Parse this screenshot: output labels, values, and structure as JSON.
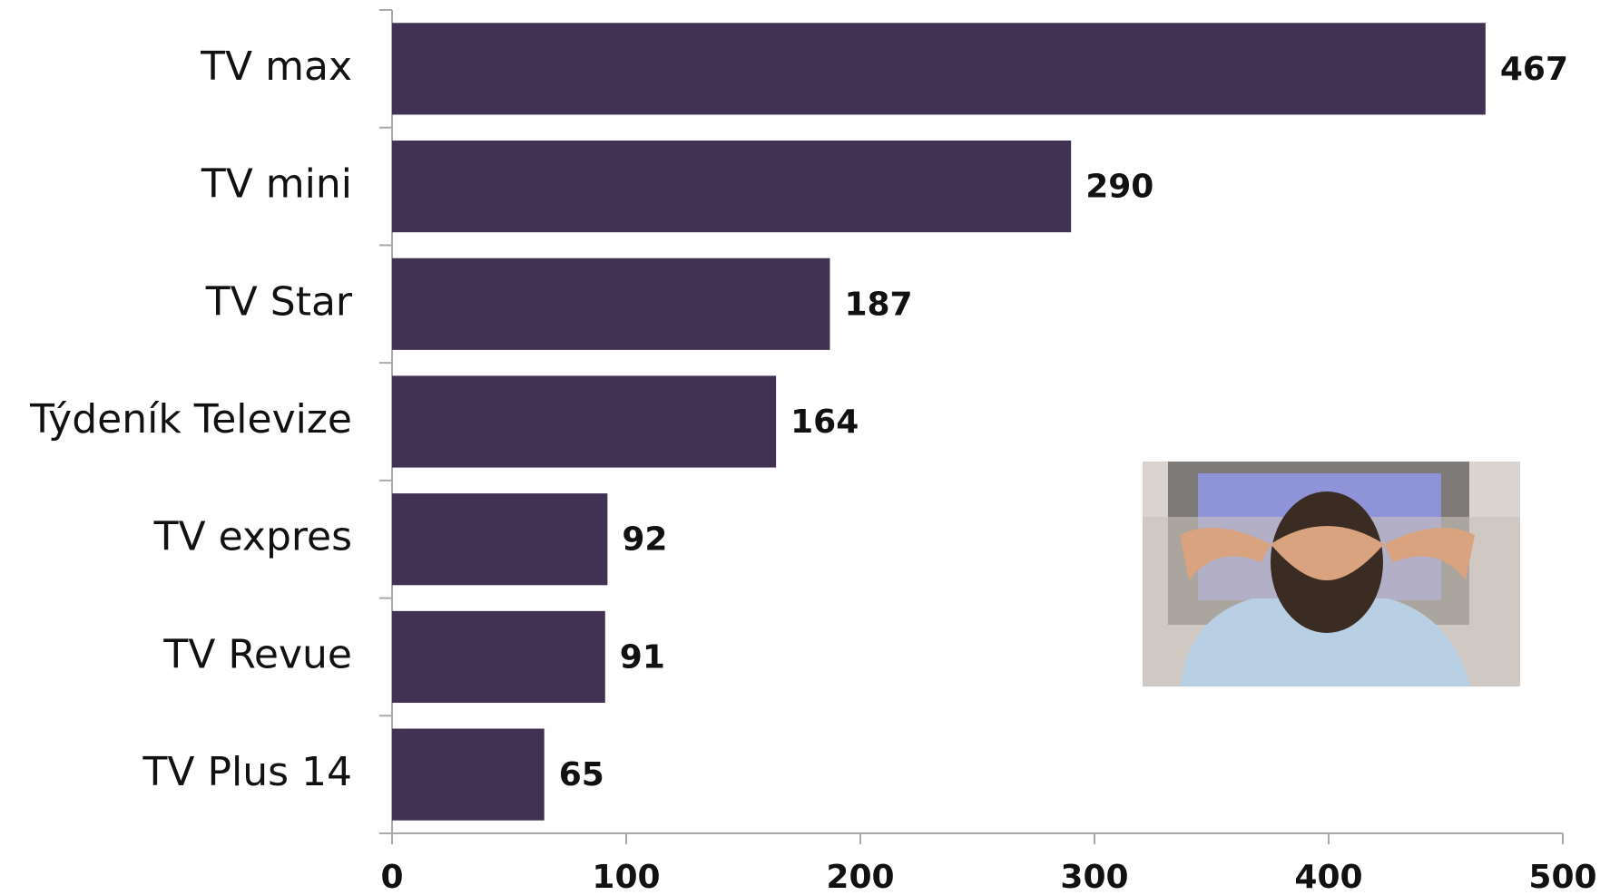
{
  "chart_data": {
    "type": "bar",
    "orientation": "horizontal",
    "categories": [
      "TV max",
      "TV mini",
      "TV Star",
      "Týdeník Televize",
      "TV expres",
      "TV Revue",
      "TV Plus 14"
    ],
    "values": [
      467,
      290,
      187,
      164,
      92,
      91,
      65
    ],
    "color": "#413152",
    "xlim": [
      0,
      500
    ],
    "xticks": [
      0,
      100,
      200,
      300,
      400,
      500
    ],
    "grid": false
  }
}
